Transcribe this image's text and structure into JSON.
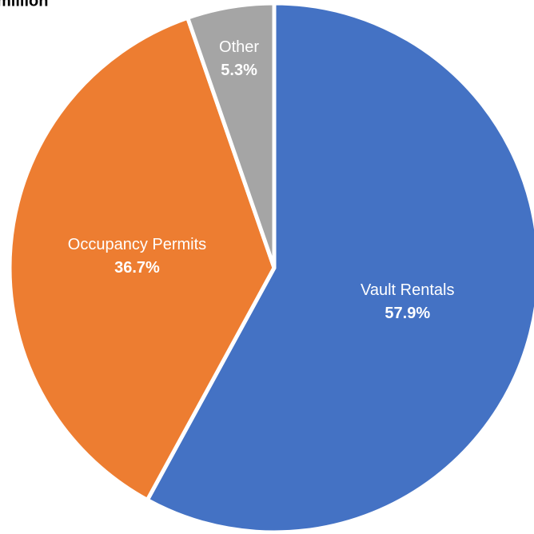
{
  "chart_data": {
    "type": "pie",
    "title": "million",
    "categories": [
      "Vault Rentals",
      "Occupancy Permits",
      "Other"
    ],
    "values": [
      57.9,
      36.7,
      5.3
    ],
    "value_labels": [
      "57.9%",
      "36.7%",
      "5.3%"
    ],
    "colors": [
      "#4472c4",
      "#ed7d31",
      "#a5a5a5"
    ]
  }
}
